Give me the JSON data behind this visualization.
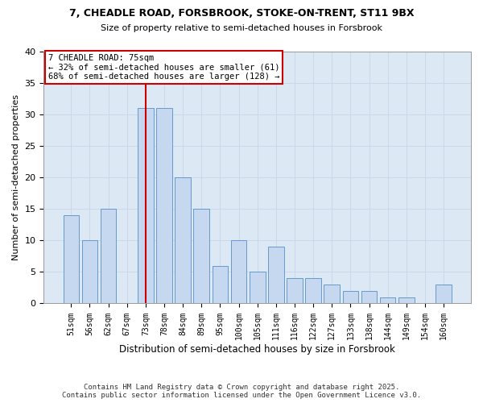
{
  "title_line1": "7, CHEADLE ROAD, FORSBROOK, STOKE-ON-TRENT, ST11 9BX",
  "title_line2": "Size of property relative to semi-detached houses in Forsbrook",
  "xlabel": "Distribution of semi-detached houses by size in Forsbrook",
  "ylabel": "Number of semi-detached properties",
  "categories": [
    "51sqm",
    "56sqm",
    "62sqm",
    "67sqm",
    "73sqm",
    "78sqm",
    "84sqm",
    "89sqm",
    "95sqm",
    "100sqm",
    "105sqm",
    "111sqm",
    "116sqm",
    "122sqm",
    "127sqm",
    "133sqm",
    "138sqm",
    "144sqm",
    "149sqm",
    "154sqm",
    "160sqm"
  ],
  "values": [
    14,
    10,
    15,
    0,
    31,
    31,
    20,
    15,
    6,
    10,
    5,
    9,
    4,
    4,
    3,
    2,
    2,
    1,
    1,
    0,
    3
  ],
  "bar_color": "#c5d8f0",
  "bar_edge_color": "#6699cc",
  "highlight_index": 4,
  "highlight_color": "#cc0000",
  "property_sqm": 75,
  "pct_smaller": 32,
  "pct_larger": 68,
  "count_smaller": 61,
  "count_larger": 128,
  "annotation_box_color": "#cc0000",
  "ylim": [
    0,
    40
  ],
  "yticks": [
    0,
    5,
    10,
    15,
    20,
    25,
    30,
    35,
    40
  ],
  "grid_color": "#c8d4e8",
  "bg_color": "#dde8f5",
  "footer_line1": "Contains HM Land Registry data © Crown copyright and database right 2025.",
  "footer_line2": "Contains public sector information licensed under the Open Government Licence v3.0."
}
